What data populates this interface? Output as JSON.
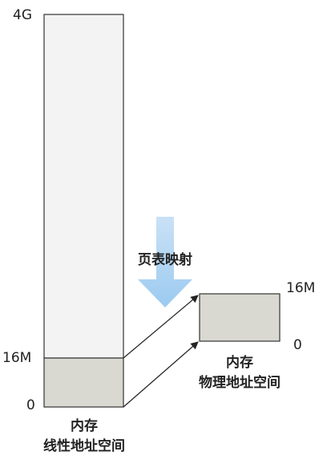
{
  "linear_space": {
    "top_label": "4G",
    "mid_label": "16M",
    "bottom_label": "0",
    "title_line1": "内存",
    "title_line2": "线性地址空间"
  },
  "physical_space": {
    "top_label": "16M",
    "bottom_label": "0",
    "title_line1": "内存",
    "title_line2": "物理地址空间"
  },
  "mapping": {
    "label": "页表映射"
  },
  "colors": {
    "upper_region": "#f3f3f4",
    "lower_region": "#d9d9d2",
    "border": "#333333",
    "arrow_top": "#c4def5",
    "arrow_bottom": "#9fcbf0"
  }
}
